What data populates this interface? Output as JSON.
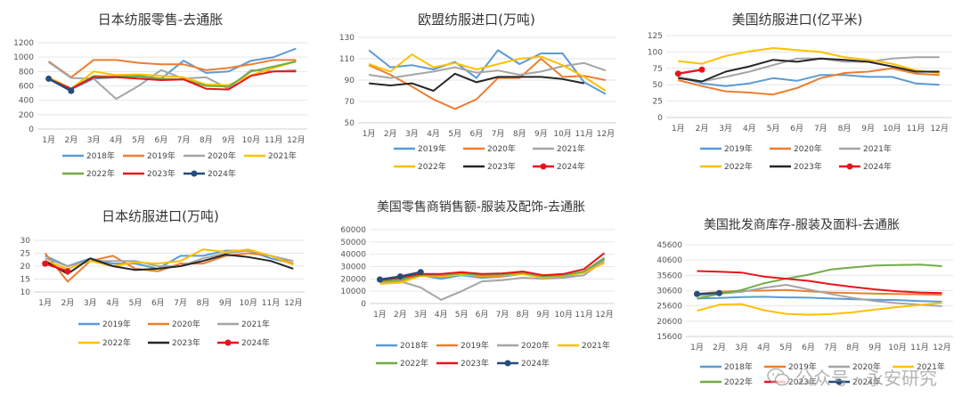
{
  "months": [
    "1月",
    "2月",
    "3月",
    "4月",
    "5月",
    "6月",
    "7月",
    "8月",
    "9月",
    "10月",
    "11月",
    "12月"
  ],
  "watermark": "公众号 · 永安研究",
  "chart_data": [
    {
      "type": "line",
      "title": "日本纺服零售-去通胀",
      "yticks": [
        0,
        200,
        400,
        600,
        800,
        1000,
        1200
      ],
      "ylim": [
        0,
        1200
      ],
      "series": [
        {
          "name": "2018年",
          "color": "#5b9bd5",
          "values": [
            700,
            550,
            700,
            720,
            730,
            700,
            950,
            780,
            800,
            950,
            1000,
            1120
          ]
        },
        {
          "name": "2019年",
          "color": "#ed7d31",
          "values": [
            940,
            720,
            960,
            960,
            920,
            900,
            900,
            820,
            850,
            900,
            960,
            960
          ]
        },
        {
          "name": "2020年",
          "color": "#a5a5a5",
          "values": [
            930,
            710,
            700,
            420,
            600,
            820,
            700,
            720,
            560,
            820,
            800,
            820
          ]
        },
        {
          "name": "2021年",
          "color": "#ffc000",
          "values": [
            720,
            560,
            800,
            750,
            760,
            740,
            720,
            620,
            610,
            750,
            850,
            940
          ]
        },
        {
          "name": "2022年",
          "color": "#70ad47",
          "values": [
            690,
            560,
            740,
            730,
            740,
            700,
            690,
            600,
            590,
            800,
            870,
            940
          ]
        },
        {
          "name": "2023年",
          "color": "#e8141b",
          "values": [
            700,
            560,
            720,
            720,
            700,
            680,
            690,
            560,
            550,
            740,
            800,
            800
          ]
        },
        {
          "name": "2024年",
          "color": "#254c7c",
          "values": [
            700,
            530
          ]
        }
      ]
    },
    {
      "type": "line",
      "title": "欧盟纺服进口(万吨)",
      "yticks": [
        50,
        70,
        90,
        110,
        130
      ],
      "ylim": [
        50,
        130
      ],
      "series": [
        {
          "name": "2019年",
          "color": "#5b9bd5",
          "values": [
            118,
            102,
            104,
            100,
            107,
            92,
            118,
            105,
            115,
            115,
            88,
            77
          ]
        },
        {
          "name": "2020年",
          "color": "#ed7d31",
          "values": [
            104,
            95,
            84,
            72,
            63,
            72,
            92,
            92,
            110,
            93,
            94,
            90
          ]
        },
        {
          "name": "2021年",
          "color": "#a5a5a5",
          "values": [
            95,
            92,
            95,
            98,
            102,
            97,
            99,
            95,
            98,
            103,
            106,
            99
          ]
        },
        {
          "name": "2022年",
          "color": "#ffc000",
          "values": [
            105,
            98,
            114,
            102,
            106,
            100,
            105,
            110,
            112,
            104,
            93,
            80
          ]
        },
        {
          "name": "2023年",
          "color": "#262626",
          "values": [
            87,
            85,
            87,
            80,
            96,
            88,
            93,
            93,
            93,
            91,
            87
          ]
        },
        {
          "name": "2024年",
          "color": "#e8141b",
          "values": []
        }
      ]
    },
    {
      "type": "line",
      "title": "美国纺服进口(亿平米)",
      "yticks": [
        0,
        25,
        50,
        75,
        100,
        125
      ],
      "ylim": [
        0,
        125
      ],
      "series": [
        {
          "name": "2019年",
          "color": "#5b9bd5",
          "values": [
            62,
            52,
            48,
            52,
            60,
            56,
            65,
            65,
            62,
            62,
            52,
            50
          ]
        },
        {
          "name": "2020年",
          "color": "#ed7d31",
          "values": [
            57,
            48,
            40,
            38,
            35,
            45,
            60,
            68,
            70,
            75,
            67,
            65
          ]
        },
        {
          "name": "2021年",
          "color": "#a5a5a5",
          "values": [
            62,
            55,
            62,
            70,
            80,
            90,
            90,
            85,
            85,
            90,
            92,
            92
          ]
        },
        {
          "name": "2022年",
          "color": "#ffc000",
          "values": [
            86,
            82,
            94,
            101,
            106,
            103,
            100,
            92,
            88,
            82,
            72,
            68
          ]
        },
        {
          "name": "2023年",
          "color": "#262626",
          "values": [
            60,
            55,
            70,
            78,
            88,
            85,
            90,
            88,
            85,
            78,
            70,
            70
          ]
        },
        {
          "name": "2024年",
          "color": "#e8141b",
          "values": [
            67,
            73
          ]
        }
      ]
    },
    {
      "type": "line",
      "title": "日本纺服进口(万吨)",
      "yticks": [
        10,
        15,
        20,
        25,
        30
      ],
      "ylim": [
        10,
        30
      ],
      "series": [
        {
          "name": "2019年",
          "color": "#5b9bd5",
          "values": [
            24,
            20,
            23,
            21,
            21,
            19,
            24,
            24,
            26,
            26,
            23,
            21
          ]
        },
        {
          "name": "2020年",
          "color": "#ed7d31",
          "values": [
            25,
            14,
            22,
            24,
            19,
            18,
            21,
            21,
            24,
            25,
            24,
            21
          ]
        },
        {
          "name": "2021年",
          "color": "#a5a5a5",
          "values": [
            23,
            20,
            22,
            22,
            22,
            20,
            20,
            23,
            25,
            26,
            24,
            22
          ]
        },
        {
          "name": "2022年",
          "color": "#ffc000",
          "values": [
            22,
            19,
            22,
            20,
            21.5,
            21,
            22,
            26.5,
            25.5,
            26.5,
            24,
            20.5
          ]
        },
        {
          "name": "2023年",
          "color": "#262626",
          "values": [
            22,
            17,
            23,
            20,
            18.5,
            19,
            20,
            22,
            24.5,
            23.5,
            22,
            19
          ]
        },
        {
          "name": "2024年",
          "color": "#e8141b",
          "values": [
            21,
            18
          ]
        }
      ]
    },
    {
      "type": "line",
      "title": "美国零售商销售额-服装及配饰-去通胀",
      "yticks": [
        0,
        10000,
        20000,
        30000,
        40000,
        50000,
        60000
      ],
      "ylim": [
        0,
        60000
      ],
      "series": [
        {
          "name": "2018年",
          "color": "#5b9bd5",
          "values": [
            17000,
            18000,
            23000,
            20000,
            23000,
            21000,
            22000,
            24000,
            21000,
            22000,
            25000,
            36000
          ]
        },
        {
          "name": "2019年",
          "color": "#ed7d31",
          "values": [
            17500,
            18500,
            23500,
            21500,
            24000,
            22000,
            22500,
            25000,
            21500,
            22500,
            26000,
            37000
          ]
        },
        {
          "name": "2020年",
          "color": "#a5a5a5",
          "values": [
            17000,
            18000,
            13000,
            3000,
            10000,
            18000,
            19000,
            21000,
            20000,
            21000,
            23000,
            35000
          ]
        },
        {
          "name": "2021年",
          "color": "#ffc000",
          "values": [
            16000,
            17000,
            22500,
            22000,
            23500,
            22500,
            23000,
            24000,
            21000,
            22500,
            25000,
            33000
          ]
        },
        {
          "name": "2022年",
          "color": "#70ad47",
          "values": [
            18000,
            19500,
            23000,
            23000,
            24500,
            23000,
            23500,
            25000,
            22000,
            23000,
            26000,
            37000
          ]
        },
        {
          "name": "2023年",
          "color": "#e8141b",
          "values": [
            19000,
            21000,
            24000,
            24000,
            25500,
            24000,
            24500,
            26000,
            23000,
            24000,
            28000,
            41000
          ]
        },
        {
          "name": "2024年",
          "color": "#254c7c",
          "values": [
            19500,
            22000,
            25500
          ]
        }
      ]
    },
    {
      "type": "line",
      "title": "美国批发商库存-服装及面料-去通胀",
      "yticks": [
        15600,
        20600,
        25600,
        30600,
        35600,
        40600,
        45600
      ],
      "ylim": [
        15600,
        45600
      ],
      "series": [
        {
          "name": "2018年",
          "color": "#5b9bd5",
          "values": [
            28000,
            28200,
            28500,
            28600,
            28400,
            28300,
            28000,
            27800,
            27600,
            27500,
            27200,
            27000
          ]
        },
        {
          "name": "2019年",
          "color": "#ed7d31",
          "values": [
            29500,
            30200,
            30500,
            30600,
            30800,
            30400,
            30000,
            29800,
            29600,
            29500,
            29400,
            29200
          ]
        },
        {
          "name": "2020年",
          "color": "#a5a5a5",
          "values": [
            29000,
            29600,
            30200,
            31500,
            32500,
            31000,
            29500,
            28200,
            27200,
            26500,
            26000,
            25500
          ]
        },
        {
          "name": "2021年",
          "color": "#ffc000",
          "values": [
            24000,
            26000,
            26200,
            24200,
            23000,
            22700,
            22900,
            23500,
            24400,
            25200,
            25900,
            26600
          ]
        },
        {
          "name": "2022年",
          "color": "#70ad47",
          "values": [
            28000,
            29500,
            30800,
            33000,
            34500,
            35800,
            37500,
            38200,
            38800,
            39000,
            39100,
            38600
          ]
        },
        {
          "name": "2023年",
          "color": "#e8141b",
          "values": [
            37000,
            36800,
            36500,
            35200,
            34500,
            33800,
            32700,
            31800,
            31000,
            30400,
            30000,
            29800
          ]
        },
        {
          "name": "2024年",
          "color": "#254c7c",
          "values": [
            29500,
            29800
          ]
        }
      ]
    }
  ]
}
